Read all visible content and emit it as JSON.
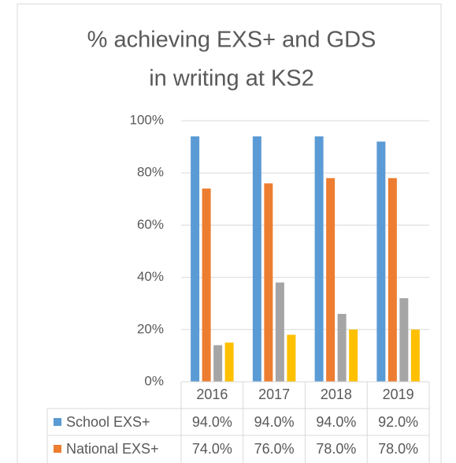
{
  "chart_data": {
    "type": "bar",
    "title": "% achieving EXS+ and GDS",
    "subtitle": "in writing at KS2",
    "categories": [
      "2016",
      "2017",
      "2018",
      "2019"
    ],
    "series": [
      {
        "name": "School EXS+",
        "color": "#5b9bd5",
        "values": [
          94,
          94,
          94,
          92
        ],
        "value_labels": [
          "94.0%",
          "94.0%",
          "94.0%",
          "92.0%"
        ]
      },
      {
        "name": "National EXS+",
        "color": "#ed7d31",
        "values": [
          74,
          76,
          78,
          78
        ],
        "value_labels": [
          "74.0%",
          "76.0%",
          "78.0%",
          "78.0%"
        ]
      },
      {
        "color": "#a5a5a5",
        "values": [
          14,
          38,
          26,
          32
        ]
      },
      {
        "color": "#ffc000",
        "values": [
          15,
          18,
          20,
          20
        ]
      }
    ],
    "ylim": [
      0,
      100
    ],
    "yticks": [
      {
        "value": 0,
        "label": "0%"
      },
      {
        "value": 20,
        "label": "20%"
      },
      {
        "value": 40,
        "label": "40%"
      },
      {
        "value": 60,
        "label": "60%"
      },
      {
        "value": 80,
        "label": "80%"
      },
      {
        "value": 100,
        "label": "100%"
      }
    ],
    "grid": true
  }
}
